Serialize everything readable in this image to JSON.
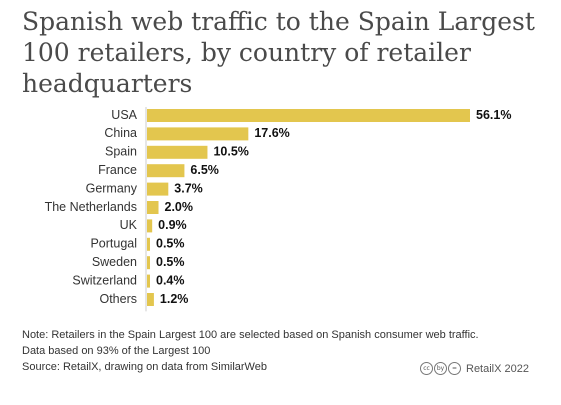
{
  "title": "Spanish web traffic to the Spain Largest 100 retailers, by country of retailer headquarters",
  "chart_data": {
    "type": "bar",
    "orientation": "horizontal",
    "categories": [
      "USA",
      "China",
      "Spain",
      "France",
      "Germany",
      "The Netherlands",
      "UK",
      "Portugal",
      "Sweden",
      "Switzerland",
      "Others"
    ],
    "values": [
      56.1,
      17.6,
      10.5,
      6.5,
      3.7,
      2.0,
      0.9,
      0.5,
      0.5,
      0.4,
      1.2
    ],
    "value_labels": [
      "56.1%",
      "17.6%",
      "10.5%",
      "6.5%",
      "3.7%",
      "2.0%",
      "0.9%",
      "0.5%",
      "0.5%",
      "0.4%",
      "1.2%"
    ],
    "title": "Spanish web traffic to the Spain Largest 100 retailers, by country of retailer headquarters",
    "xlabel": "",
    "ylabel": "",
    "xlim": [
      0,
      56.1
    ],
    "bar_color": "#e3c64e",
    "grid": false
  },
  "footer": {
    "note_line1": "Note: Retailers in the Spain Largest 100 are selected based on  Spanish consumer web traffic.",
    "note_line2": "Data based on 93% of the Largest 100",
    "source": "Source: RetailX, drawing on data from SimilarWeb",
    "credit": "RetailX 2022",
    "license_icons": [
      "cc",
      "by",
      "="
    ]
  }
}
